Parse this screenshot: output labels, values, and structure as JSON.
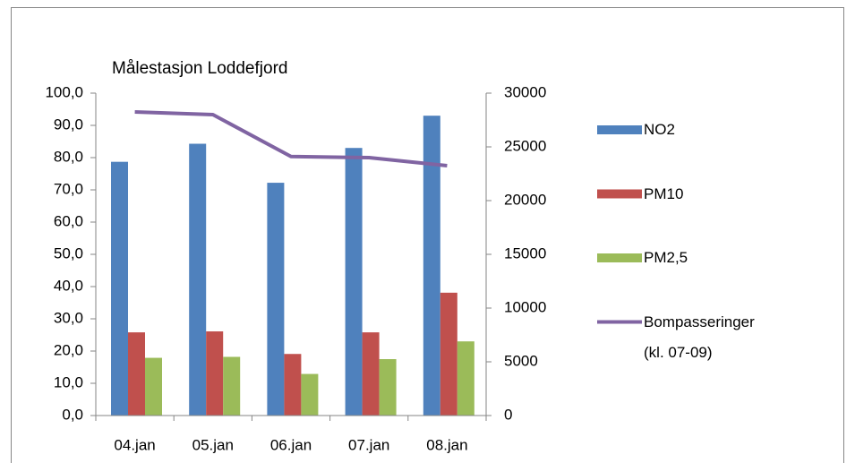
{
  "chart_data": {
    "type": "bar-line",
    "title": "Målestasjon Loddefjord",
    "categories": [
      "04.jan",
      "05.jan",
      "06.jan",
      "07.jan",
      "08.jan"
    ],
    "series": [
      {
        "name": "NO2",
        "color": "#4f81bd",
        "type": "bar",
        "values": [
          78.7,
          84.3,
          72.2,
          83.0,
          93.0
        ]
      },
      {
        "name": "PM10",
        "color": "#c0504d",
        "type": "bar",
        "values": [
          25.8,
          26.1,
          19.1,
          25.8,
          38.1
        ]
      },
      {
        "name": "PM2,5",
        "color": "#9bbb59",
        "type": "bar",
        "values": [
          17.9,
          18.2,
          12.9,
          17.5,
          23.0
        ]
      },
      {
        "name": "Bompasseringer (kl. 07-09)",
        "color": "#8064a2",
        "type": "line",
        "axis": "y2",
        "values": [
          28250,
          28000,
          24100,
          24000,
          23250
        ]
      }
    ],
    "ylim": [
      0,
      100
    ],
    "yticks": [
      {
        "value": 0,
        "label": "0,0"
      },
      {
        "value": 10,
        "label": "10,0"
      },
      {
        "value": 20,
        "label": "20,0"
      },
      {
        "value": 30,
        "label": "30,0"
      },
      {
        "value": 40,
        "label": "40,0"
      },
      {
        "value": 50,
        "label": "50,0"
      },
      {
        "value": 60,
        "label": "60,0"
      },
      {
        "value": 70,
        "label": "70,0"
      },
      {
        "value": 80,
        "label": "80,0"
      },
      {
        "value": 90,
        "label": "90,0"
      },
      {
        "value": 100,
        "label": "100,0"
      }
    ],
    "y2lim": [
      0,
      30000
    ],
    "y2ticks": [
      0,
      5000,
      10000,
      15000,
      20000,
      25000,
      30000
    ],
    "legend": "right"
  }
}
